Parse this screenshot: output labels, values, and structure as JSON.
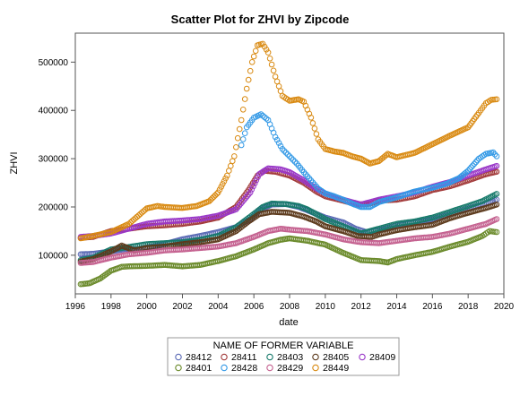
{
  "chart_data": {
    "type": "scatter",
    "title": "Scatter Plot for ZHVI by Zipcode",
    "xlabel": "date",
    "ylabel": "ZHVI",
    "xlim": [
      1996,
      2020
    ],
    "ylim": [
      20000,
      560000
    ],
    "xticks": [
      "1996",
      "1998",
      "2000",
      "2002",
      "2004",
      "2006",
      "2008",
      "2010",
      "2012",
      "2014",
      "2016",
      "2018",
      "2020"
    ],
    "yticks": [
      "100000",
      "200000",
      "300000",
      "400000",
      "500000"
    ],
    "grid": false,
    "legend": {
      "title": "NAME OF FORMER VARIABLE",
      "placement": "bottom"
    },
    "series": [
      {
        "name": "28412",
        "color": "#5a6ab5",
        "points": [
          [
            1996.3,
            102000
          ],
          [
            1997,
            103000
          ],
          [
            1998,
            108000
          ],
          [
            1998.8,
            113000
          ],
          [
            1999.5,
            112000
          ],
          [
            2000,
            116000
          ],
          [
            2001,
            123000
          ],
          [
            2002,
            133000
          ],
          [
            2003,
            140000
          ],
          [
            2004,
            148000
          ],
          [
            2005,
            158000
          ],
          [
            2005.8,
            175000
          ],
          [
            2006.4,
            195000
          ],
          [
            2007,
            205000
          ],
          [
            2007.8,
            206000
          ],
          [
            2008.5,
            200000
          ],
          [
            2009,
            193000
          ],
          [
            2010,
            178000
          ],
          [
            2011,
            168000
          ],
          [
            2011.7,
            155000
          ],
          [
            2012.3,
            148000
          ],
          [
            2013,
            152000
          ],
          [
            2013.7,
            158000
          ],
          [
            2014,
            162000
          ],
          [
            2015,
            168000
          ],
          [
            2016,
            174000
          ],
          [
            2017,
            185000
          ],
          [
            2018,
            197000
          ],
          [
            2018.8,
            205000
          ],
          [
            2019.4,
            212000
          ],
          [
            2019.6,
            215000
          ]
        ]
      },
      {
        "name": "28411",
        "color": "#a23a3a",
        "points": [
          [
            1996.3,
            136000
          ],
          [
            1997,
            138000
          ],
          [
            1998,
            150000
          ],
          [
            1999,
            155000
          ],
          [
            2000,
            160000
          ],
          [
            2001,
            162000
          ],
          [
            2002,
            165000
          ],
          [
            2003,
            170000
          ],
          [
            2004,
            178000
          ],
          [
            2005,
            200000
          ],
          [
            2005.7,
            235000
          ],
          [
            2006.2,
            265000
          ],
          [
            2006.6,
            275000
          ],
          [
            2007.2,
            273000
          ],
          [
            2008,
            265000
          ],
          [
            2008.8,
            250000
          ],
          [
            2009.5,
            232000
          ],
          [
            2010,
            222000
          ],
          [
            2011,
            213000
          ],
          [
            2011.8,
            205000
          ],
          [
            2012.5,
            207000
          ],
          [
            2013,
            213000
          ],
          [
            2014,
            215000
          ],
          [
            2015,
            222000
          ],
          [
            2016,
            235000
          ],
          [
            2017,
            243000
          ],
          [
            2018,
            255000
          ],
          [
            2019,
            268000
          ],
          [
            2019.6,
            273000
          ]
        ]
      },
      {
        "name": "28403",
        "color": "#177a6b",
        "points": [
          [
            1996.3,
            90000
          ],
          [
            1997,
            95000
          ],
          [
            1998,
            112000
          ],
          [
            1999,
            117000
          ],
          [
            2000,
            123000
          ],
          [
            2001,
            125000
          ],
          [
            2002,
            127000
          ],
          [
            2003,
            132000
          ],
          [
            2004,
            140000
          ],
          [
            2005,
            158000
          ],
          [
            2005.8,
            180000
          ],
          [
            2006.5,
            200000
          ],
          [
            2007,
            207000
          ],
          [
            2007.8,
            206000
          ],
          [
            2008.5,
            202000
          ],
          [
            2009,
            195000
          ],
          [
            2010,
            175000
          ],
          [
            2011,
            160000
          ],
          [
            2012,
            145000
          ],
          [
            2013,
            155000
          ],
          [
            2014,
            165000
          ],
          [
            2015,
            170000
          ],
          [
            2016,
            178000
          ],
          [
            2017,
            190000
          ],
          [
            2018,
            202000
          ],
          [
            2018.8,
            212000
          ],
          [
            2019.6,
            227000
          ]
        ]
      },
      {
        "name": "28405",
        "color": "#5c3a1c",
        "points": [
          [
            1996.3,
            87000
          ],
          [
            1997,
            92000
          ],
          [
            1998,
            108000
          ],
          [
            1998.6,
            120000
          ],
          [
            1999.3,
            110000
          ],
          [
            2000,
            115000
          ],
          [
            2001,
            118000
          ],
          [
            2002,
            123000
          ],
          [
            2003,
            127000
          ],
          [
            2004,
            133000
          ],
          [
            2005,
            150000
          ],
          [
            2005.7,
            170000
          ],
          [
            2006.3,
            185000
          ],
          [
            2007,
            190000
          ],
          [
            2008,
            188000
          ],
          [
            2008.8,
            180000
          ],
          [
            2009.5,
            170000
          ],
          [
            2010,
            160000
          ],
          [
            2011,
            150000
          ],
          [
            2011.8,
            140000
          ],
          [
            2012.6,
            138000
          ],
          [
            2013,
            143000
          ],
          [
            2014,
            152000
          ],
          [
            2015,
            158000
          ],
          [
            2016,
            163000
          ],
          [
            2017,
            177000
          ],
          [
            2018,
            188000
          ],
          [
            2019,
            198000
          ],
          [
            2019.6,
            205000
          ]
        ]
      },
      {
        "name": "28409",
        "color": "#9a38c8",
        "points": [
          [
            1996.3,
            138000
          ],
          [
            1997,
            140000
          ],
          [
            1998,
            145000
          ],
          [
            1999,
            155000
          ],
          [
            2000,
            165000
          ],
          [
            2001,
            170000
          ],
          [
            2002,
            172000
          ],
          [
            2003,
            175000
          ],
          [
            2004,
            182000
          ],
          [
            2005,
            195000
          ],
          [
            2005.8,
            230000
          ],
          [
            2006.3,
            268000
          ],
          [
            2006.8,
            280000
          ],
          [
            2007.5,
            278000
          ],
          [
            2008,
            272000
          ],
          [
            2008.8,
            255000
          ],
          [
            2009.5,
            238000
          ],
          [
            2010,
            228000
          ],
          [
            2011,
            215000
          ],
          [
            2012,
            205000
          ],
          [
            2013,
            215000
          ],
          [
            2014,
            222000
          ],
          [
            2015,
            230000
          ],
          [
            2016,
            242000
          ],
          [
            2017,
            252000
          ],
          [
            2018,
            265000
          ],
          [
            2019,
            278000
          ],
          [
            2019.6,
            285000
          ]
        ]
      },
      {
        "name": "28401",
        "color": "#6a8a2a",
        "points": [
          [
            1996.3,
            40000
          ],
          [
            1996.8,
            42000
          ],
          [
            1997.4,
            52000
          ],
          [
            1998,
            68000
          ],
          [
            1998.6,
            76000
          ],
          [
            1999,
            77000
          ],
          [
            2000,
            78000
          ],
          [
            2001,
            80000
          ],
          [
            2002,
            77000
          ],
          [
            2003,
            80000
          ],
          [
            2004,
            88000
          ],
          [
            2005,
            98000
          ],
          [
            2006,
            112000
          ],
          [
            2006.8,
            125000
          ],
          [
            2007.5,
            132000
          ],
          [
            2008,
            135000
          ],
          [
            2009,
            130000
          ],
          [
            2010,
            122000
          ],
          [
            2011,
            105000
          ],
          [
            2012,
            90000
          ],
          [
            2013,
            88000
          ],
          [
            2013.5,
            85000
          ],
          [
            2014,
            92000
          ],
          [
            2015,
            100000
          ],
          [
            2016,
            107000
          ],
          [
            2017,
            118000
          ],
          [
            2018,
            128000
          ],
          [
            2018.8,
            140000
          ],
          [
            2019.2,
            150000
          ],
          [
            2019.6,
            148000
          ]
        ]
      },
      {
        "name": "28428",
        "color": "#3399e6",
        "points": [
          [
            2005.3,
            328000
          ],
          [
            2005.6,
            365000
          ],
          [
            2006,
            385000
          ],
          [
            2006.4,
            392000
          ],
          [
            2006.8,
            380000
          ],
          [
            2007.2,
            345000
          ],
          [
            2007.6,
            320000
          ],
          [
            2008,
            305000
          ],
          [
            2008.4,
            290000
          ],
          [
            2008.8,
            272000
          ],
          [
            2009.2,
            255000
          ],
          [
            2009.6,
            238000
          ],
          [
            2010,
            228000
          ],
          [
            2010.5,
            222000
          ],
          [
            2011,
            215000
          ],
          [
            2011.5,
            207000
          ],
          [
            2012,
            200000
          ],
          [
            2012.5,
            200000
          ],
          [
            2013,
            210000
          ],
          [
            2014,
            220000
          ],
          [
            2015,
            232000
          ],
          [
            2016,
            240000
          ],
          [
            2016.8,
            248000
          ],
          [
            2017.5,
            260000
          ],
          [
            2018,
            275000
          ],
          [
            2018.6,
            300000
          ],
          [
            2019,
            310000
          ],
          [
            2019.4,
            313000
          ],
          [
            2019.6,
            305000
          ]
        ]
      },
      {
        "name": "28429",
        "color": "#c4608f",
        "points": [
          [
            1996.3,
            84000
          ],
          [
            1997,
            86000
          ],
          [
            1998,
            95000
          ],
          [
            1999,
            102000
          ],
          [
            2000,
            105000
          ],
          [
            2001,
            110000
          ],
          [
            2002,
            112000
          ],
          [
            2003,
            115000
          ],
          [
            2004,
            118000
          ],
          [
            2005,
            125000
          ],
          [
            2006,
            138000
          ],
          [
            2006.8,
            150000
          ],
          [
            2007.5,
            155000
          ],
          [
            2008,
            153000
          ],
          [
            2009,
            150000
          ],
          [
            2010,
            143000
          ],
          [
            2011,
            133000
          ],
          [
            2012,
            127000
          ],
          [
            2013,
            125000
          ],
          [
            2014,
            130000
          ],
          [
            2015,
            135000
          ],
          [
            2016,
            138000
          ],
          [
            2017,
            145000
          ],
          [
            2018,
            155000
          ],
          [
            2019,
            165000
          ],
          [
            2019.6,
            175000
          ]
        ]
      },
      {
        "name": "28449",
        "color": "#d98a12",
        "points": [
          [
            1996.3,
            135000
          ],
          [
            1997,
            140000
          ],
          [
            1998,
            148000
          ],
          [
            1999,
            165000
          ],
          [
            2000,
            197000
          ],
          [
            2000.6,
            202000
          ],
          [
            2001,
            200000
          ],
          [
            2002,
            198000
          ],
          [
            2002.8,
            202000
          ],
          [
            2003.5,
            212000
          ],
          [
            2004,
            230000
          ],
          [
            2004.5,
            265000
          ],
          [
            2004.9,
            305000
          ],
          [
            2005.3,
            380000
          ],
          [
            2005.6,
            445000
          ],
          [
            2005.9,
            500000
          ],
          [
            2006.2,
            535000
          ],
          [
            2006.5,
            538000
          ],
          [
            2006.8,
            520000
          ],
          [
            2007.2,
            470000
          ],
          [
            2007.6,
            430000
          ],
          [
            2008,
            420000
          ],
          [
            2008.5,
            423000
          ],
          [
            2008.8,
            418000
          ],
          [
            2009.2,
            385000
          ],
          [
            2009.6,
            340000
          ],
          [
            2010,
            320000
          ],
          [
            2010.5,
            315000
          ],
          [
            2011,
            312000
          ],
          [
            2011.5,
            305000
          ],
          [
            2012,
            300000
          ],
          [
            2012.5,
            290000
          ],
          [
            2013,
            295000
          ],
          [
            2013.5,
            310000
          ],
          [
            2014,
            303000
          ],
          [
            2015,
            312000
          ],
          [
            2016,
            330000
          ],
          [
            2017,
            348000
          ],
          [
            2018,
            365000
          ],
          [
            2018.6,
            395000
          ],
          [
            2019,
            415000
          ],
          [
            2019.3,
            422000
          ],
          [
            2019.6,
            423000
          ]
        ]
      }
    ]
  }
}
